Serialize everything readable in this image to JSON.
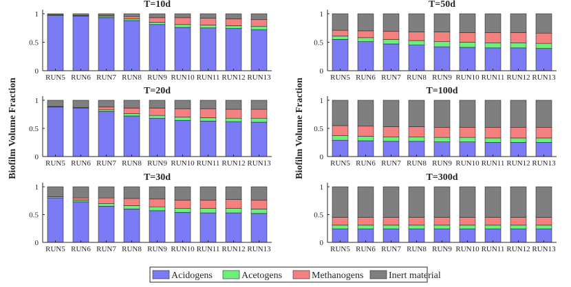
{
  "figure": {
    "ylabel": "Biofilm Volume Fraction",
    "legend": [
      {
        "label": "Acidogens",
        "color": "#7b7bf5"
      },
      {
        "label": "Acetogens",
        "color": "#6cf07b"
      },
      {
        "label": "Methanogens",
        "color": "#f58080"
      },
      {
        "label": "Inert material",
        "color": "#7f7f7f"
      }
    ]
  },
  "chart_data": [
    {
      "type": "bar",
      "stacked": true,
      "title": "T=10d",
      "categories": [
        "RUN5",
        "RUN6",
        "RUN7",
        "RUN8",
        "RUN9",
        "RUN10",
        "RUN11",
        "RUN12",
        "RUN13"
      ],
      "yticks": [
        "0",
        "0.5",
        "1"
      ],
      "ylim": [
        0,
        1
      ],
      "series": [
        {
          "name": "Acidogens",
          "values": [
            0.97,
            0.96,
            0.93,
            0.88,
            0.81,
            0.76,
            0.75,
            0.74,
            0.72
          ]
        },
        {
          "name": "Acetogens",
          "values": [
            0.01,
            0.01,
            0.02,
            0.03,
            0.04,
            0.05,
            0.05,
            0.05,
            0.06
          ]
        },
        {
          "name": "Methanogens",
          "values": [
            0.0,
            0.0,
            0.02,
            0.04,
            0.08,
            0.12,
            0.12,
            0.12,
            0.12
          ]
        },
        {
          "name": "Inert material",
          "values": [
            0.02,
            0.03,
            0.03,
            0.05,
            0.07,
            0.07,
            0.08,
            0.09,
            0.1
          ]
        }
      ]
    },
    {
      "type": "bar",
      "stacked": true,
      "title": "T=50d",
      "categories": [
        "RUN5",
        "RUN6",
        "RUN7",
        "RUN8",
        "RUN9",
        "RUN10",
        "RUN11",
        "RUN12",
        "RUN13"
      ],
      "yticks": [
        "0",
        "0.5",
        "1"
      ],
      "ylim": [
        0,
        1
      ],
      "series": [
        {
          "name": "Acidogens",
          "values": [
            0.55,
            0.51,
            0.47,
            0.45,
            0.42,
            0.41,
            0.4,
            0.4,
            0.39
          ]
        },
        {
          "name": "Acetogens",
          "values": [
            0.06,
            0.07,
            0.08,
            0.08,
            0.09,
            0.09,
            0.09,
            0.09,
            0.09
          ]
        },
        {
          "name": "Methanogens",
          "values": [
            0.1,
            0.12,
            0.14,
            0.15,
            0.17,
            0.17,
            0.18,
            0.18,
            0.18
          ]
        },
        {
          "name": "Inert material",
          "values": [
            0.29,
            0.3,
            0.31,
            0.32,
            0.32,
            0.33,
            0.33,
            0.33,
            0.34
          ]
        }
      ]
    },
    {
      "type": "bar",
      "stacked": true,
      "title": "T=20d",
      "categories": [
        "RUN5",
        "RUN6",
        "RUN7",
        "RUN8",
        "RUN9",
        "RUN10",
        "RUN11",
        "RUN12",
        "RUN13"
      ],
      "yticks": [
        "0",
        "0.5",
        "1"
      ],
      "ylim": [
        0,
        1
      ],
      "series": [
        {
          "name": "Acidogens",
          "values": [
            0.88,
            0.86,
            0.8,
            0.72,
            0.68,
            0.64,
            0.63,
            0.62,
            0.61
          ]
        },
        {
          "name": "Acetogens",
          "values": [
            0.01,
            0.01,
            0.03,
            0.04,
            0.05,
            0.06,
            0.06,
            0.06,
            0.07
          ]
        },
        {
          "name": "Methanogens",
          "values": [
            0.0,
            0.0,
            0.05,
            0.1,
            0.13,
            0.15,
            0.16,
            0.16,
            0.16
          ]
        },
        {
          "name": "Inert material",
          "values": [
            0.11,
            0.13,
            0.12,
            0.14,
            0.14,
            0.15,
            0.15,
            0.16,
            0.16
          ]
        }
      ]
    },
    {
      "type": "bar",
      "stacked": true,
      "title": "T=100d",
      "categories": [
        "RUN5",
        "RUN6",
        "RUN7",
        "RUN8",
        "RUN9",
        "RUN10",
        "RUN11",
        "RUN12",
        "RUN13"
      ],
      "yticks": [
        "0",
        "0.5",
        "1"
      ],
      "ylim": [
        0,
        1
      ],
      "series": [
        {
          "name": "Acidogens",
          "values": [
            0.29,
            0.28,
            0.27,
            0.27,
            0.26,
            0.26,
            0.25,
            0.25,
            0.25
          ]
        },
        {
          "name": "Acetogens",
          "values": [
            0.08,
            0.08,
            0.08,
            0.08,
            0.08,
            0.08,
            0.08,
            0.08,
            0.08
          ]
        },
        {
          "name": "Methanogens",
          "values": [
            0.18,
            0.18,
            0.18,
            0.18,
            0.18,
            0.18,
            0.19,
            0.19,
            0.19
          ]
        },
        {
          "name": "Inert material",
          "values": [
            0.45,
            0.46,
            0.47,
            0.47,
            0.48,
            0.48,
            0.48,
            0.48,
            0.48
          ]
        }
      ]
    },
    {
      "type": "bar",
      "stacked": true,
      "title": "T=30d",
      "categories": [
        "RUN5",
        "RUN6",
        "RUN7",
        "RUN8",
        "RUN9",
        "RUN10",
        "RUN11",
        "RUN12",
        "RUN13"
      ],
      "yticks": [
        "0",
        "0.5",
        "1"
      ],
      "ylim": [
        0,
        1
      ],
      "series": [
        {
          "name": "Acidogens",
          "values": [
            0.8,
            0.73,
            0.65,
            0.6,
            0.57,
            0.54,
            0.53,
            0.53,
            0.52
          ]
        },
        {
          "name": "Acetogens",
          "values": [
            0.02,
            0.03,
            0.05,
            0.06,
            0.07,
            0.07,
            0.08,
            0.08,
            0.08
          ]
        },
        {
          "name": "Methanogens",
          "values": [
            0.0,
            0.04,
            0.1,
            0.13,
            0.14,
            0.15,
            0.15,
            0.16,
            0.16
          ]
        },
        {
          "name": "Inert material",
          "values": [
            0.18,
            0.2,
            0.2,
            0.21,
            0.22,
            0.24,
            0.24,
            0.23,
            0.24
          ]
        }
      ]
    },
    {
      "type": "bar",
      "stacked": true,
      "title": "T=300d",
      "categories": [
        "RUN5",
        "RUN6",
        "RUN7",
        "RUN8",
        "RUN9",
        "RUN10",
        "RUN11",
        "RUN12",
        "RUN13"
      ],
      "yticks": [
        "0",
        "0.5",
        "1"
      ],
      "ylim": [
        0,
        1
      ],
      "series": [
        {
          "name": "Acidogens",
          "values": [
            0.24,
            0.24,
            0.24,
            0.24,
            0.24,
            0.24,
            0.24,
            0.24,
            0.24
          ]
        },
        {
          "name": "Acetogens",
          "values": [
            0.07,
            0.07,
            0.07,
            0.07,
            0.07,
            0.07,
            0.07,
            0.07,
            0.07
          ]
        },
        {
          "name": "Methanogens",
          "values": [
            0.14,
            0.14,
            0.14,
            0.14,
            0.14,
            0.14,
            0.14,
            0.14,
            0.14
          ]
        },
        {
          "name": "Inert material",
          "values": [
            0.55,
            0.55,
            0.55,
            0.55,
            0.55,
            0.55,
            0.55,
            0.55,
            0.55
          ]
        }
      ]
    }
  ]
}
